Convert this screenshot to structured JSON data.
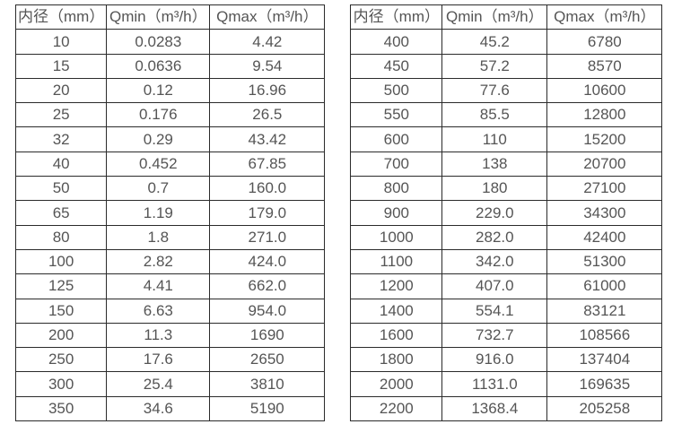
{
  "colors": {
    "background": "#ffffff",
    "table_border": "#2b2b2b",
    "table_text": "#555555"
  },
  "chart_data": [
    {
      "type": "table",
      "title": "",
      "columns": [
        "内径（mm）",
        "Qmin（m³/h）",
        "Qmax（m³/h）"
      ],
      "rows": [
        [
          "10",
          "0.0283",
          "4.42"
        ],
        [
          "15",
          "0.0636",
          "9.54"
        ],
        [
          "20",
          "0.12",
          "16.96"
        ],
        [
          "25",
          "0.176",
          "26.5"
        ],
        [
          "32",
          "0.29",
          "43.42"
        ],
        [
          "40",
          "0.452",
          "67.85"
        ],
        [
          "50",
          "0.7",
          "160.0"
        ],
        [
          "65",
          "1.19",
          "179.0"
        ],
        [
          "80",
          "1.8",
          "271.0"
        ],
        [
          "100",
          "2.82",
          "424.0"
        ],
        [
          "125",
          "4.41",
          "662.0"
        ],
        [
          "150",
          "6.63",
          "954.0"
        ],
        [
          "200",
          "11.3",
          "1690"
        ],
        [
          "250",
          "17.6",
          "2650"
        ],
        [
          "300",
          "25.4",
          "3810"
        ],
        [
          "350",
          "34.6",
          "5190"
        ]
      ]
    },
    {
      "type": "table",
      "title": "",
      "columns": [
        "内径（mm）",
        "Qmin（m³/h）",
        "Qmax（m³/h）"
      ],
      "rows": [
        [
          "400",
          "45.2",
          "6780"
        ],
        [
          "450",
          "57.2",
          "8570"
        ],
        [
          "500",
          "77.6",
          "10600"
        ],
        [
          "550",
          "85.5",
          "12800"
        ],
        [
          "600",
          "110",
          "15200"
        ],
        [
          "700",
          "138",
          "20700"
        ],
        [
          "800",
          "180",
          "27100"
        ],
        [
          "900",
          "229.0",
          "34300"
        ],
        [
          "1000",
          "282.0",
          "42400"
        ],
        [
          "1100",
          "342.0",
          "51300"
        ],
        [
          "1200",
          "407.0",
          "61000"
        ],
        [
          "1400",
          "554.1",
          "83121"
        ],
        [
          "1600",
          "732.7",
          "108566"
        ],
        [
          "1800",
          "916.0",
          "137404"
        ],
        [
          "2000",
          "1131.0",
          "169635"
        ],
        [
          "2200",
          "1368.4",
          "205258"
        ]
      ]
    }
  ]
}
